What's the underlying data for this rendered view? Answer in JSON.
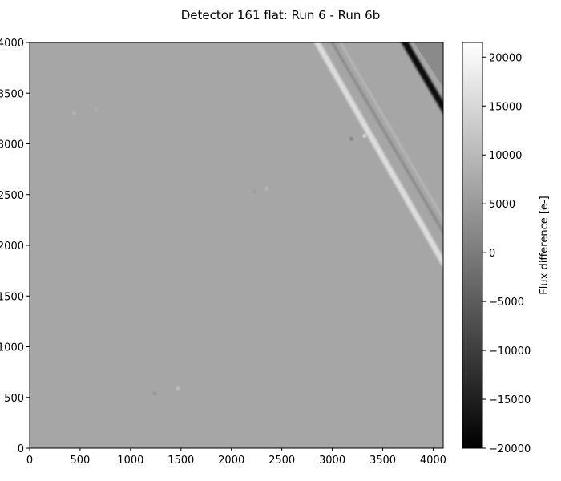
{
  "chart_data": {
    "type": "heatmap",
    "title": "Detector 161 flat: Run 6 - Run 6b",
    "xlabel": "",
    "ylabel": "",
    "xlim": [
      0,
      4100
    ],
    "ylim": [
      0,
      4000
    ],
    "x_ticks": [
      0,
      500,
      1000,
      1500,
      2000,
      2500,
      3000,
      3500,
      4000
    ],
    "x_tick_labels": [
      "0",
      "500",
      "1000",
      "1500",
      "2000",
      "2500",
      "3000",
      "3500",
      "4000"
    ],
    "y_ticks": [
      0,
      500,
      1000,
      1500,
      2000,
      2500,
      3000,
      3500,
      4000
    ],
    "y_tick_labels": [
      "0",
      "500",
      "1000",
      "1500",
      "2000",
      "2500",
      "3000",
      "3500",
      "4000"
    ],
    "colormap": "gray",
    "colorbar": {
      "label": "Flux difference [e-]",
      "range": [
        -20000,
        21500
      ],
      "ticks": [
        -20000,
        -15000,
        -10000,
        -5000,
        0,
        5000,
        10000,
        15000,
        20000
      ],
      "tick_labels": [
        "−20000",
        "−15000",
        "−10000",
        "−5000",
        "0",
        "5000",
        "10000",
        "15000",
        "20000"
      ]
    },
    "background_level": 7000,
    "features": [
      {
        "kind": "bright-diagonal-band",
        "from": [
          2850,
          4000
        ],
        "to": [
          4100,
          1830
        ],
        "level": 16000
      },
      {
        "kind": "dark-ripple",
        "from": [
          3000,
          4000
        ],
        "to": [
          4100,
          2130
        ],
        "level": 2000
      },
      {
        "kind": "ripple",
        "from": [
          3080,
          4000
        ],
        "to": [
          4100,
          2260
        ],
        "level": 11000
      },
      {
        "kind": "dark-corner-stripe",
        "from": [
          3720,
          4000
        ],
        "to": [
          4100,
          3360
        ],
        "level": -18000
      },
      {
        "kind": "corner-region",
        "polygon": [
          [
            3810,
            4000
          ],
          [
            4100,
            4000
          ],
          [
            4100,
            3560
          ]
        ],
        "level": 2500
      },
      {
        "kind": "spot",
        "x": 3190,
        "y": 3050,
        "level": 1500
      },
      {
        "kind": "spot",
        "x": 3320,
        "y": 3080,
        "level": 14000
      },
      {
        "kind": "spot",
        "x": 1240,
        "y": 540,
        "level": 4000
      },
      {
        "kind": "spot",
        "x": 1470,
        "y": 590,
        "level": 10500
      },
      {
        "kind": "spot",
        "x": 2230,
        "y": 2530,
        "level": 5500
      },
      {
        "kind": "spot",
        "x": 2350,
        "y": 2560,
        "level": 9500
      },
      {
        "kind": "spot",
        "x": 440,
        "y": 3300,
        "level": 9000
      },
      {
        "kind": "spot",
        "x": 660,
        "y": 3340,
        "level": 8000
      }
    ]
  }
}
